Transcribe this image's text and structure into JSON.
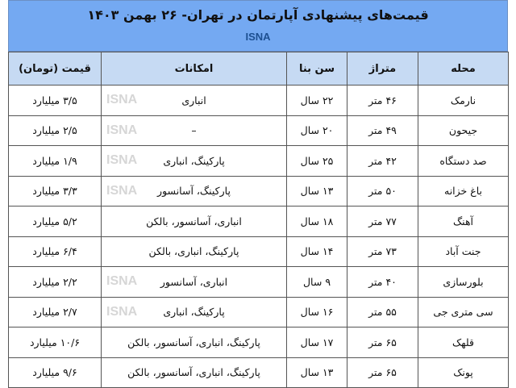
{
  "header": {
    "title": "قیمت‌های پیشنهادی آپارتمان در تهران- ۲۶ بهمن ۱۴۰۳",
    "brand": "ISNA"
  },
  "watermark": "ISNA",
  "table": {
    "columns": [
      "محله",
      "متراژ",
      "سن بنا",
      "امکانات",
      "قیمت (تومان)"
    ],
    "rows": [
      [
        "نارمک",
        "۴۶ متر",
        "۲۲ سال",
        "انباری",
        "۳/۵ میلیارد"
      ],
      [
        "جیحون",
        "۴۹ متر",
        "۲۰ سال",
        "–",
        "۲/۵ میلیارد"
      ],
      [
        "صد دستگاه",
        "۴۲ متر",
        "۲۵ سال",
        "پارکینگ، انباری",
        "۱/۹ میلیارد"
      ],
      [
        "باغ خزانه",
        "۵۰ متر",
        "۱۳ سال",
        "پارکینگ، آسانسور",
        "۳/۳ میلیارد"
      ],
      [
        "آهنگ",
        "۷۷ متر",
        "۱۸ سال",
        "انباری، آسانسور، بالکن",
        "۵/۲ میلیارد"
      ],
      [
        "جنت آباد",
        "۷۳ متر",
        "۱۴ سال",
        "پارکینگ، انباری، بالکن",
        "۶/۴ میلیارد"
      ],
      [
        "بلورسازی",
        "۴۰ متر",
        "۹ سال",
        "انباری، آسانسور",
        "۲/۲ میلیارد"
      ],
      [
        "سی متری جی",
        "۵۵ متر",
        "۱۶ سال",
        "پارکینگ، انباری",
        "۲/۷ میلیارد"
      ],
      [
        "قلهک",
        "۶۵ متر",
        "۱۷ سال",
        "پارکینگ، انباری، آسانسور، بالکن",
        "۱۰/۶ میلیارد"
      ],
      [
        "پونک",
        "۶۵ متر",
        "۱۳ سال",
        "پارکینگ، انباری، آسانسور، بالکن",
        "۹/۶ میلیارد"
      ]
    ]
  }
}
